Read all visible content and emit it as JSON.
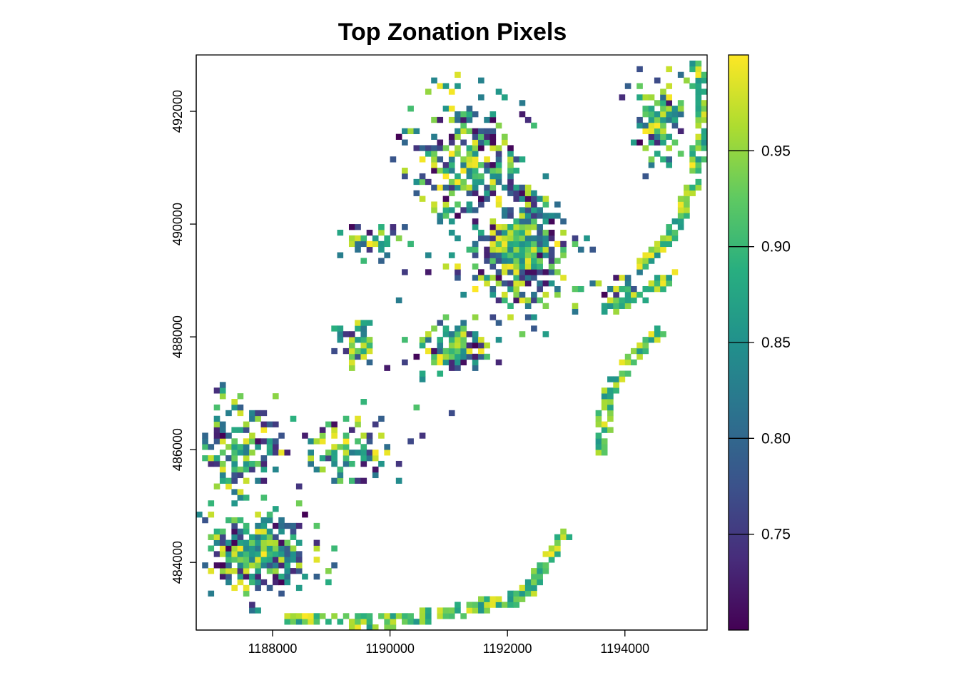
{
  "chart_data": {
    "type": "heatmap",
    "title": "Top Zonation Pixels",
    "xlabel": "",
    "ylabel": "",
    "xlim": [
      1186700,
      1195400
    ],
    "ylim": [
      482800,
      493000
    ],
    "x_ticks": [
      1188000,
      1190000,
      1192000,
      1194000
    ],
    "x_tick_labels": [
      "1188000",
      "1190000",
      "1192000",
      "1194000"
    ],
    "y_ticks": [
      484000,
      486000,
      488000,
      490000,
      492000
    ],
    "y_tick_labels": [
      "484000",
      "486000",
      "488000",
      "490000",
      "492000"
    ],
    "colorbar": {
      "range": [
        0.7,
        1.0
      ],
      "ticks": [
        0.75,
        0.8,
        0.85,
        0.9,
        0.95
      ],
      "tick_labels": [
        "0.75",
        "0.80",
        "0.85",
        "0.90",
        "0.95"
      ],
      "colormap": "viridis",
      "colors": [
        "#440154",
        "#472d7b",
        "#3b528b",
        "#2c728e",
        "#21918c",
        "#28ae80",
        "#5ec962",
        "#addc30",
        "#fde725"
      ]
    },
    "cell_size": 100,
    "clusters": [
      {
        "x": 1187700,
        "y": 484200,
        "rx": 900,
        "ry": 700,
        "weight": 1.0
      },
      {
        "x": 1192200,
        "y": 489600,
        "rx": 800,
        "ry": 1100,
        "weight": 1.0
      },
      {
        "x": 1191300,
        "y": 491000,
        "rx": 800,
        "ry": 1100,
        "weight": 0.55
      },
      {
        "x": 1191100,
        "y": 487800,
        "rx": 600,
        "ry": 500,
        "weight": 0.8
      },
      {
        "x": 1194600,
        "y": 491800,
        "rx": 450,
        "ry": 700,
        "weight": 0.7
      },
      {
        "x": 1187500,
        "y": 486000,
        "rx": 700,
        "ry": 800,
        "weight": 0.45
      },
      {
        "x": 1189800,
        "y": 489700,
        "rx": 500,
        "ry": 300,
        "weight": 0.5
      },
      {
        "x": 1189500,
        "y": 487900,
        "rx": 450,
        "ry": 400,
        "weight": 0.4
      },
      {
        "x": 1193900,
        "y": 488900,
        "rx": 500,
        "ry": 200,
        "weight": 0.5
      },
      {
        "x": 1189300,
        "y": 486000,
        "rx": 700,
        "ry": 600,
        "weight": 0.3
      }
    ],
    "corridors": [
      [
        [
          1188300,
          483000
        ],
        [
          1190000,
          482950
        ],
        [
          1191200,
          483150
        ],
        [
          1192300,
          483400
        ],
        [
          1192700,
          484100
        ],
        [
          1193000,
          484500
        ]
      ],
      [
        [
          1193600,
          486000
        ],
        [
          1193700,
          487000
        ],
        [
          1194100,
          487600
        ],
        [
          1194600,
          488100
        ]
      ],
      [
        [
          1194300,
          489300
        ],
        [
          1194800,
          489800
        ],
        [
          1195200,
          490800
        ],
        [
          1195350,
          492000
        ],
        [
          1195200,
          492800
        ]
      ],
      [
        [
          1193700,
          488500
        ],
        [
          1194400,
          488800
        ],
        [
          1194800,
          489100
        ]
      ]
    ]
  }
}
